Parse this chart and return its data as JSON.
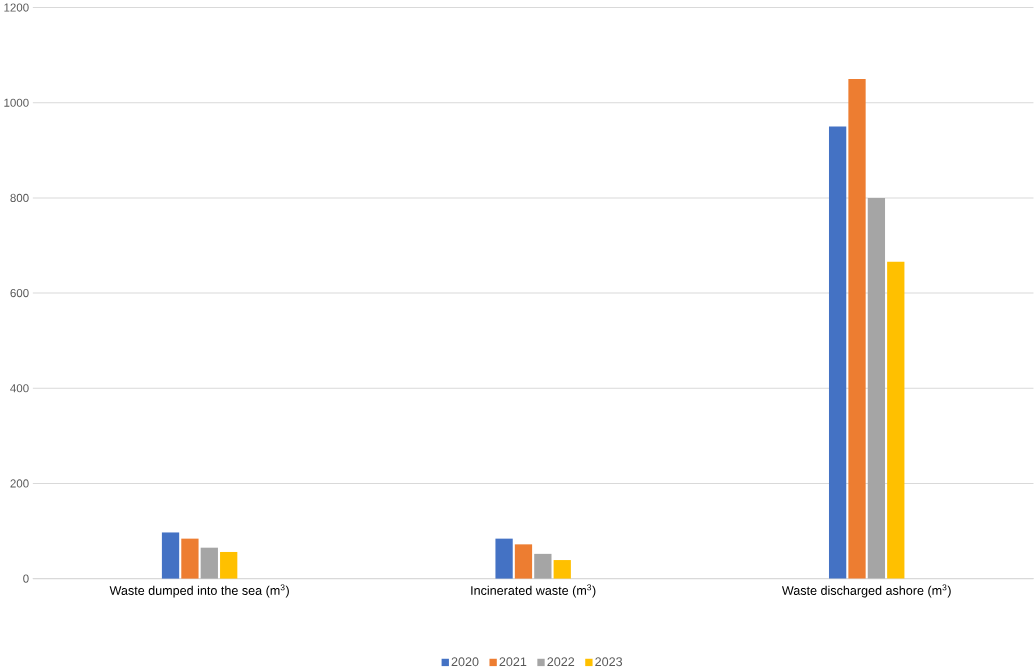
{
  "chart_data": {
    "type": "bar",
    "categories": [
      "Waste dumped into the sea (m$^{3}$)",
      "Incinerated waste (m$^{3}$)",
      "Waste discharged ashore (m$^{3}$)"
    ],
    "series": [
      {
        "name": "2020",
        "color": "#4472c4",
        "values": [
          97,
          84,
          950
        ]
      },
      {
        "name": "2021",
        "color": "#ed7d31",
        "values": [
          84,
          72,
          1050
        ]
      },
      {
        "name": "2022",
        "color": "#a5a5a5",
        "values": [
          65,
          52,
          800
        ]
      },
      {
        "name": "2023",
        "color": "#ffc000",
        "values": [
          56,
          39,
          666
        ]
      }
    ],
    "ylim": [
      0,
      1200
    ],
    "yticks": [
      0,
      200,
      400,
      600,
      800,
      1000,
      1200
    ],
    "grid": "y",
    "legend": "bottom"
  }
}
